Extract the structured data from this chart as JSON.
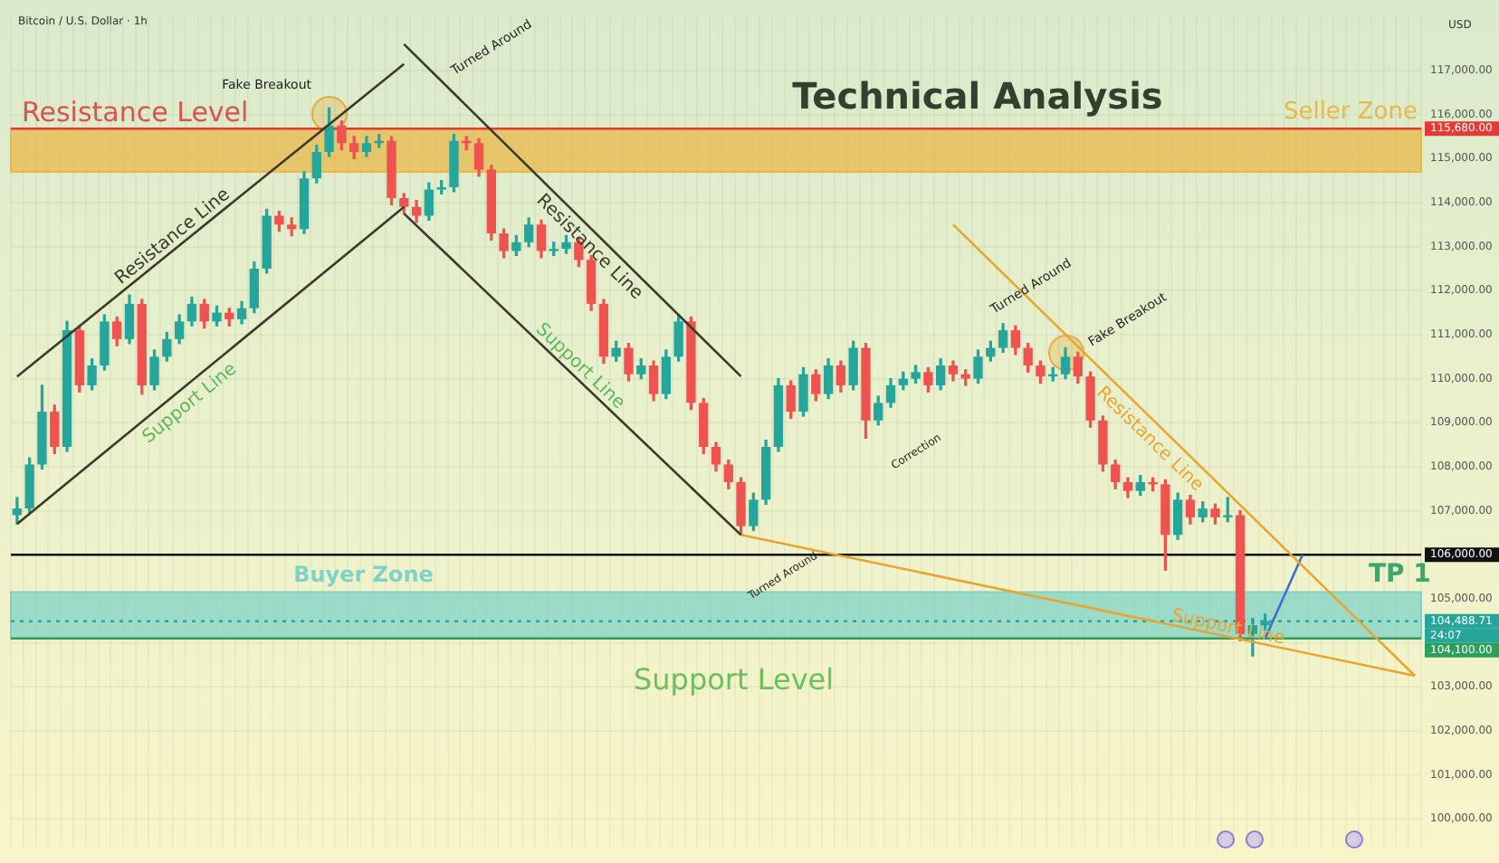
{
  "chart_data": {
    "type": "candlestick",
    "title": "Technical Analysis",
    "subtitle": "Bitcoin / U.S. Dollar · 1h",
    "categories": [
      null,
      null,
      null,
      null,
      null,
      null,
      null,
      null,
      null,
      null,
      null,
      null,
      null,
      null,
      null,
      null,
      null,
      null,
      null,
      null,
      null,
      null,
      null,
      null,
      null,
      null,
      null,
      null,
      null,
      null,
      null,
      null,
      null,
      null,
      null,
      null,
      null,
      null,
      null,
      null,
      null,
      null,
      null,
      null,
      null,
      null,
      null,
      null,
      null,
      null,
      null,
      null,
      null,
      null,
      null,
      null,
      null,
      null,
      null,
      null,
      null,
      null,
      null,
      null,
      null,
      null,
      null,
      null,
      null,
      null,
      null,
      null,
      null,
      null,
      null,
      null,
      null,
      null,
      null,
      null,
      null,
      null,
      null,
      null,
      null,
      null,
      null,
      null,
      null,
      null,
      null,
      null,
      null,
      null,
      null,
      null,
      null,
      null,
      null,
      null,
      null,
      null,
      null,
      null,
      null,
      null,
      null,
      null,
      null,
      null,
      null,
      null,
      null
    ],
    "ohlc": [
      [
        106900,
        107300,
        106700,
        107050
      ],
      [
        107050,
        108200,
        106950,
        108050
      ],
      [
        108050,
        109850,
        107950,
        109250
      ],
      [
        109250,
        109400,
        108300,
        108450
      ],
      [
        108450,
        111300,
        108350,
        111100
      ],
      [
        111100,
        111200,
        109700,
        109850
      ],
      [
        109850,
        110450,
        109750,
        110300
      ],
      [
        110300,
        111450,
        110200,
        111300
      ],
      [
        111300,
        111400,
        110750,
        110900
      ],
      [
        110900,
        111900,
        110800,
        111700
      ],
      [
        111700,
        111800,
        109650,
        109850
      ],
      [
        109850,
        110650,
        109750,
        110500
      ],
      [
        110500,
        111050,
        110400,
        110900
      ],
      [
        110900,
        111450,
        110800,
        111300
      ],
      [
        111300,
        111850,
        111200,
        111700
      ],
      [
        111700,
        111800,
        111150,
        111300
      ],
      [
        111300,
        111650,
        111200,
        111500
      ],
      [
        111500,
        111600,
        111200,
        111350
      ],
      [
        111350,
        111750,
        111250,
        111600
      ],
      [
        111600,
        112650,
        111500,
        112500
      ],
      [
        112500,
        113850,
        112400,
        113700
      ],
      [
        113700,
        113800,
        113350,
        113500
      ],
      [
        113500,
        113650,
        113250,
        113400
      ],
      [
        113400,
        114700,
        113300,
        114550
      ],
      [
        114550,
        115300,
        114450,
        115150
      ],
      [
        115150,
        116150,
        115050,
        115750
      ],
      [
        115750,
        115850,
        115200,
        115350
      ],
      [
        115350,
        115500,
        115000,
        115150
      ],
      [
        115150,
        115500,
        115050,
        115350
      ],
      [
        115350,
        115550,
        115250,
        115400
      ],
      [
        115400,
        115500,
        113950,
        114100
      ],
      [
        114100,
        114200,
        113750,
        113900
      ],
      [
        113900,
        114050,
        113550,
        113700
      ],
      [
        113700,
        114450,
        113600,
        114300
      ],
      [
        114300,
        114500,
        114200,
        114350
      ],
      [
        114350,
        115550,
        114250,
        115400
      ],
      [
        115400,
        115500,
        115200,
        115350
      ],
      [
        115350,
        115450,
        114600,
        114750
      ],
      [
        114750,
        114850,
        113150,
        113300
      ],
      [
        113300,
        113400,
        112750,
        112900
      ],
      [
        112900,
        113250,
        112800,
        113100
      ],
      [
        113100,
        113650,
        113000,
        113500
      ],
      [
        113500,
        113600,
        112750,
        112900
      ],
      [
        112900,
        113100,
        112800,
        112950
      ],
      [
        112950,
        113250,
        112850,
        113100
      ],
      [
        113100,
        113200,
        112550,
        112700
      ],
      [
        112700,
        112800,
        111550,
        111700
      ],
      [
        111700,
        111800,
        110350,
        110500
      ],
      [
        110500,
        110850,
        110400,
        110700
      ],
      [
        110700,
        110800,
        109950,
        110100
      ],
      [
        110100,
        110450,
        110000,
        110300
      ],
      [
        110300,
        110400,
        109500,
        109650
      ],
      [
        109650,
        110650,
        109550,
        110500
      ],
      [
        110500,
        111450,
        110400,
        111300
      ],
      [
        111300,
        111400,
        109300,
        109450
      ],
      [
        109450,
        109550,
        108300,
        108450
      ],
      [
        108450,
        108550,
        107900,
        108050
      ],
      [
        108050,
        108150,
        107500,
        107650
      ],
      [
        107650,
        107750,
        106450,
        106650
      ],
      [
        106650,
        107400,
        106550,
        107250
      ],
      [
        107250,
        108600,
        107150,
        108450
      ],
      [
        108450,
        110000,
        108350,
        109850
      ],
      [
        109850,
        109950,
        109100,
        109250
      ],
      [
        109250,
        110250,
        109150,
        110100
      ],
      [
        110100,
        110200,
        109500,
        109650
      ],
      [
        109650,
        110450,
        109550,
        110300
      ],
      [
        110300,
        110400,
        109700,
        109850
      ],
      [
        109850,
        110850,
        109750,
        110700
      ],
      [
        110700,
        110800,
        108650,
        109050
      ],
      [
        109050,
        109600,
        108950,
        109450
      ],
      [
        109450,
        110000,
        109350,
        109850
      ],
      [
        109850,
        110150,
        109750,
        110000
      ],
      [
        110000,
        110300,
        109900,
        110150
      ],
      [
        110150,
        110250,
        109700,
        109850
      ],
      [
        109850,
        110450,
        109750,
        110300
      ],
      [
        110300,
        110400,
        109950,
        110100
      ],
      [
        110100,
        110200,
        109850,
        110000
      ],
      [
        110000,
        110650,
        109900,
        110500
      ],
      [
        110500,
        110850,
        110400,
        110700
      ],
      [
        110700,
        111250,
        110600,
        111100
      ],
      [
        111100,
        111200,
        110550,
        110700
      ],
      [
        110700,
        110800,
        110150,
        110300
      ],
      [
        110300,
        110400,
        109900,
        110050
      ],
      [
        110050,
        110250,
        109950,
        110100
      ],
      [
        110100,
        110700,
        110000,
        110500
      ],
      [
        110500,
        110600,
        109900,
        110050
      ],
      [
        110050,
        110150,
        108900,
        109050
      ],
      [
        109050,
        109150,
        107900,
        108050
      ],
      [
        108050,
        108150,
        107500,
        107650
      ],
      [
        107650,
        107750,
        107300,
        107450
      ],
      [
        107450,
        107800,
        107350,
        107650
      ],
      [
        107650,
        107750,
        107450,
        107600
      ],
      [
        107600,
        107700,
        105650,
        106450
      ],
      [
        106450,
        107400,
        106350,
        107250
      ],
      [
        107250,
        107350,
        106700,
        106850
      ],
      [
        106850,
        107200,
        106750,
        107050
      ],
      [
        107050,
        107150,
        106700,
        106850
      ],
      [
        106850,
        107300,
        106750,
        106900
      ],
      [
        106900,
        107000,
        104050,
        104200
      ],
      [
        104200,
        104550,
        103700,
        104400
      ],
      [
        104400,
        104650,
        104300,
        104488.71
      ],
      null,
      null,
      null,
      null,
      null,
      null,
      null,
      null,
      null,
      null,
      null,
      null
    ],
    "series": [
      {
        "type": "line",
        "name": "Resistance Line",
        "color": "#3a3a2a",
        "values": [
          110050,
          null,
          null,
          null,
          null,
          null,
          null,
          null,
          null,
          null,
          null,
          null,
          null,
          null,
          null,
          null,
          null,
          null,
          null,
          null,
          null,
          null,
          null,
          null,
          null,
          null,
          null,
          null,
          null,
          null,
          null,
          117150,
          null,
          null,
          null,
          null,
          null,
          null,
          null,
          null,
          null,
          null,
          null,
          null,
          null,
          null,
          null,
          null,
          null,
          null,
          null,
          null,
          null,
          null,
          null,
          null,
          null,
          null,
          null,
          null,
          null,
          null,
          null,
          null,
          null,
          null,
          null,
          null,
          null,
          null,
          null,
          null,
          null,
          null,
          null,
          null,
          null,
          null,
          null,
          null,
          null,
          null,
          null,
          null,
          null,
          null,
          null,
          null,
          null,
          null,
          null,
          null,
          null,
          null,
          null,
          null,
          null,
          null,
          null,
          null,
          null,
          null,
          null,
          null,
          null,
          null,
          null,
          null,
          null,
          null,
          null,
          null,
          null
        ]
      },
      {
        "type": "line",
        "name": "Support Line",
        "color": "#3a3a2a",
        "values": [
          106700,
          null,
          null,
          null,
          null,
          null,
          null,
          null,
          null,
          null,
          null,
          null,
          null,
          null,
          null,
          null,
          null,
          null,
          null,
          null,
          null,
          null,
          null,
          null,
          null,
          null,
          null,
          null,
          null,
          null,
          null,
          113900,
          null,
          null,
          null,
          null,
          null,
          null,
          null,
          null,
          null,
          null,
          null,
          null,
          null,
          null,
          null,
          null,
          null,
          null,
          null,
          null,
          null,
          null,
          null,
          null,
          null,
          null,
          null,
          null,
          null,
          null,
          null,
          null,
          null,
          null,
          null,
          null,
          null,
          null,
          null,
          null,
          null,
          null,
          null,
          null,
          null,
          null,
          null,
          null,
          null,
          null,
          null,
          null,
          null,
          null,
          null,
          null,
          null,
          null,
          null,
          null,
          null,
          null,
          null,
          null,
          null,
          null,
          null,
          null,
          null,
          null,
          null,
          null,
          null,
          null,
          null,
          null,
          null,
          null,
          null,
          null,
          null
        ]
      },
      {
        "type": "line",
        "name": "Resistance Line",
        "color": "#3a3a2a",
        "values": [
          null,
          null,
          null,
          null,
          null,
          null,
          null,
          null,
          null,
          null,
          null,
          null,
          null,
          null,
          null,
          null,
          null,
          null,
          null,
          null,
          null,
          null,
          null,
          null,
          null,
          null,
          null,
          null,
          null,
          null,
          null,
          117600,
          null,
          null,
          null,
          null,
          null,
          null,
          null,
          null,
          null,
          null,
          null,
          null,
          null,
          null,
          null,
          null,
          null,
          null,
          null,
          null,
          null,
          null,
          null,
          null,
          null,
          null,
          110050,
          null,
          null,
          null,
          null,
          null,
          null,
          null,
          null,
          null,
          null,
          null,
          null,
          null,
          null,
          null,
          null,
          null,
          null,
          null,
          null,
          null,
          null,
          null,
          null,
          null,
          null,
          null,
          null,
          null,
          null,
          null,
          null,
          null,
          null,
          null,
          null,
          null,
          null,
          null,
          null,
          null,
          null,
          null,
          null,
          null,
          null,
          null,
          null,
          null,
          null,
          null,
          null,
          null,
          null
        ]
      },
      {
        "type": "line",
        "name": "Support Line",
        "color": "#3a3a2a",
        "values": [
          null,
          null,
          null,
          null,
          null,
          null,
          null,
          null,
          null,
          null,
          null,
          null,
          null,
          null,
          null,
          null,
          null,
          null,
          null,
          null,
          null,
          null,
          null,
          null,
          null,
          null,
          null,
          null,
          null,
          null,
          null,
          113750,
          null,
          null,
          null,
          null,
          null,
          null,
          null,
          null,
          null,
          null,
          null,
          null,
          null,
          null,
          null,
          null,
          null,
          null,
          null,
          null,
          null,
          null,
          null,
          null,
          null,
          null,
          106450,
          null,
          null,
          null,
          null,
          null,
          null,
          null,
          null,
          null,
          null,
          null,
          null,
          null,
          null,
          null,
          null,
          null,
          null,
          null,
          null,
          null,
          null,
          null,
          null,
          null,
          null,
          null,
          null,
          null,
          null,
          null,
          null,
          null,
          null,
          null,
          null,
          null,
          null,
          null,
          null,
          null,
          null,
          null,
          null,
          null,
          null,
          null,
          null,
          null,
          null,
          null,
          null,
          null,
          null
        ]
      },
      {
        "type": "line",
        "name": "Support Line",
        "color": "#e8a530",
        "values": [
          null,
          null,
          null,
          null,
          null,
          null,
          null,
          null,
          null,
          null,
          null,
          null,
          null,
          null,
          null,
          null,
          null,
          null,
          null,
          null,
          null,
          null,
          null,
          null,
          null,
          null,
          null,
          null,
          null,
          null,
          null,
          null,
          null,
          null,
          null,
          null,
          null,
          null,
          null,
          null,
          null,
          null,
          null,
          null,
          null,
          null,
          null,
          null,
          null,
          null,
          null,
          null,
          null,
          null,
          null,
          null,
          null,
          null,
          106450,
          null,
          null,
          null,
          null,
          null,
          null,
          null,
          null,
          null,
          null,
          null,
          null,
          null,
          null,
          null,
          null,
          null,
          null,
          null,
          null,
          null,
          null,
          null,
          null,
          null,
          null,
          null,
          null,
          null,
          null,
          null,
          null,
          null,
          null,
          null,
          null,
          null,
          null,
          null,
          null,
          null,
          null,
          null,
          null,
          null,
          null,
          null,
          null,
          null,
          null,
          null,
          null,
          null,
          103250
        ]
      },
      {
        "type": "line",
        "name": "Resistance Line",
        "color": "#e8a530",
        "values": [
          null,
          null,
          null,
          null,
          null,
          null,
          null,
          null,
          null,
          null,
          null,
          null,
          null,
          null,
          null,
          null,
          null,
          null,
          null,
          null,
          null,
          null,
          null,
          null,
          null,
          null,
          null,
          null,
          null,
          null,
          null,
          null,
          null,
          null,
          null,
          null,
          null,
          null,
          null,
          null,
          null,
          null,
          null,
          null,
          null,
          null,
          null,
          null,
          null,
          null,
          null,
          null,
          null,
          null,
          null,
          null,
          null,
          null,
          null,
          null,
          null,
          null,
          null,
          null,
          null,
          null,
          null,
          null,
          null,
          null,
          null,
          null,
          null,
          null,
          null,
          113500,
          null,
          null,
          null,
          null,
          null,
          null,
          null,
          null,
          null,
          null,
          null,
          null,
          null,
          null,
          null,
          null,
          null,
          null,
          null,
          null,
          null,
          null,
          null,
          null,
          null,
          null,
          null,
          null,
          null,
          null,
          null,
          null,
          null,
          null,
          null,
          null,
          103250
        ]
      },
      {
        "type": "line",
        "color": "#3b6fd6",
        "values": [
          null,
          null,
          null,
          null,
          null,
          null,
          null,
          null,
          null,
          null,
          null,
          null,
          null,
          null,
          null,
          null,
          null,
          null,
          null,
          null,
          null,
          null,
          null,
          null,
          null,
          null,
          null,
          null,
          null,
          null,
          null,
          null,
          null,
          null,
          null,
          null,
          null,
          null,
          null,
          null,
          null,
          null,
          null,
          null,
          null,
          null,
          null,
          null,
          null,
          null,
          null,
          null,
          null,
          null,
          null,
          null,
          null,
          null,
          null,
          null,
          null,
          null,
          null,
          null,
          null,
          null,
          null,
          null,
          null,
          null,
          null,
          null,
          null,
          null,
          null,
          null,
          null,
          null,
          null,
          null,
          null,
          null,
          null,
          null,
          null,
          null,
          null,
          null,
          null,
          null,
          null,
          null,
          null,
          null,
          null,
          null,
          null,
          null,
          null,
          null,
          104100,
          null,
          null,
          106000,
          null,
          null,
          null,
          null,
          null,
          null,
          null,
          null,
          null
        ]
      }
    ],
    "ylim": [
      99350,
      118250
    ],
    "yticks": [
      {
        "value": 100000,
        "label": "100,000.00"
      },
      {
        "value": 101000,
        "label": "101,000.00"
      },
      {
        "value": 102000,
        "label": "102,000.00"
      },
      {
        "value": 103000,
        "label": "103,000.00"
      },
      {
        "value": 104000,
        "label": null
      },
      {
        "value": 105000,
        "label": "105,000.00"
      },
      {
        "value": 106000,
        "label": null
      },
      {
        "value": 107000,
        "label": "107,000.00"
      },
      {
        "value": 108000,
        "label": "108,000.00"
      },
      {
        "value": 109000,
        "label": "109,000.00"
      },
      {
        "value": 110000,
        "label": "110,000.00"
      },
      {
        "value": 111000,
        "label": "111,000.00"
      },
      {
        "value": 112000,
        "label": "112,000.00"
      },
      {
        "value": 113000,
        "label": "113,000.00"
      },
      {
        "value": 114000,
        "label": "114,000.00"
      },
      {
        "value": 115000,
        "label": "115,000.00"
      },
      {
        "value": 116000,
        "label": "116,000.00"
      },
      {
        "value": 117000,
        "label": "117,000.00"
      }
    ],
    "bands": [
      {
        "axis": "y",
        "from": 114700,
        "to": 115680,
        "label": "Seller Zone",
        "color": "#e9b84a"
      },
      {
        "axis": "y",
        "from": 104100,
        "to": 105150,
        "label": "Buyer Zone",
        "color": "#7fd3c6"
      }
    ],
    "ref_lines": [
      {
        "axis": "y",
        "value": 115680,
        "label": "115,680.00",
        "color": "#e53935"
      },
      {
        "axis": "y",
        "value": 106000,
        "label": "106,000.00",
        "color": "#111111"
      },
      {
        "axis": "y",
        "value": 104488.71,
        "label": "104,488.71",
        "color": "#26a69a",
        "line_style": "dotted"
      },
      {
        "axis": "y",
        "value": 104100,
        "label": "104,100.00",
        "color": "#2e9e5b"
      }
    ],
    "annotations": [
      "Resistance Level",
      "Support Level",
      "TP 1",
      "Fake Breakout",
      "Turned Around",
      "Turned Around",
      "Correction",
      "Turned Around",
      "Fake Breakout",
      "USD",
      "24:07"
    ],
    "tick_labels": "y",
    "grid": true,
    "legend": false
  }
}
